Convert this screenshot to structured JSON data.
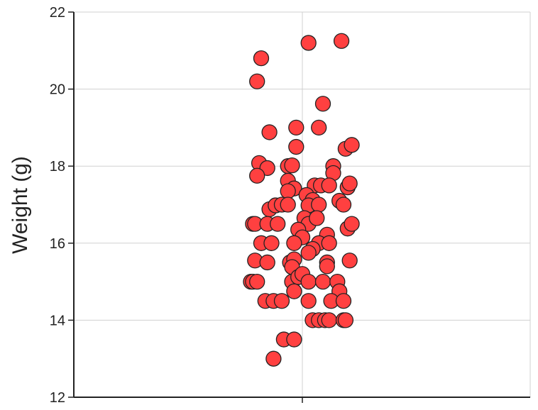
{
  "chart_data": {
    "type": "scatter",
    "title": "",
    "xlabel": "",
    "ylabel": "Weight (g)",
    "ylim": [
      12,
      22
    ],
    "yticks": [
      "12",
      "14",
      "16",
      "18",
      "20",
      "22"
    ],
    "grid": true,
    "marker_color": "#ff4040",
    "marker_edge_color": "#222222",
    "points": [
      {
        "jitter": -0.2,
        "y": 20.8
      },
      {
        "jitter": -0.22,
        "y": 20.2
      },
      {
        "jitter": 0.03,
        "y": 21.2
      },
      {
        "jitter": 0.19,
        "y": 21.25
      },
      {
        "jitter": 0.1,
        "y": 19.62
      },
      {
        "jitter": -0.16,
        "y": 18.88
      },
      {
        "jitter": -0.03,
        "y": 19.0
      },
      {
        "jitter": 0.08,
        "y": 19.0
      },
      {
        "jitter": -0.03,
        "y": 18.5
      },
      {
        "jitter": 0.21,
        "y": 18.45
      },
      {
        "jitter": 0.24,
        "y": 18.55
      },
      {
        "jitter": -0.21,
        "y": 18.08
      },
      {
        "jitter": -0.17,
        "y": 17.95
      },
      {
        "jitter": -0.22,
        "y": 17.75
      },
      {
        "jitter": -0.07,
        "y": 18.0
      },
      {
        "jitter": -0.05,
        "y": 18.02
      },
      {
        "jitter": 0.15,
        "y": 18.0
      },
      {
        "jitter": 0.15,
        "y": 17.82
      },
      {
        "jitter": -0.07,
        "y": 17.62
      },
      {
        "jitter": -0.04,
        "y": 17.42
      },
      {
        "jitter": 0.06,
        "y": 17.5
      },
      {
        "jitter": 0.09,
        "y": 17.5
      },
      {
        "jitter": 0.13,
        "y": 17.5
      },
      {
        "jitter": 0.22,
        "y": 17.45
      },
      {
        "jitter": 0.23,
        "y": 17.55
      },
      {
        "jitter": -0.07,
        "y": 17.35
      },
      {
        "jitter": 0.02,
        "y": 17.25
      },
      {
        "jitter": 0.05,
        "y": 17.12
      },
      {
        "jitter": 0.18,
        "y": 17.1
      },
      {
        "jitter": -0.16,
        "y": 16.88
      },
      {
        "jitter": -0.13,
        "y": 16.98
      },
      {
        "jitter": -0.1,
        "y": 17.0
      },
      {
        "jitter": -0.07,
        "y": 17.0
      },
      {
        "jitter": 0.03,
        "y": 16.98
      },
      {
        "jitter": 0.08,
        "y": 17.0
      },
      {
        "jitter": 0.2,
        "y": 17.0
      },
      {
        "jitter": -0.24,
        "y": 16.5
      },
      {
        "jitter": -0.23,
        "y": 16.5
      },
      {
        "jitter": -0.17,
        "y": 16.5
      },
      {
        "jitter": -0.12,
        "y": 16.5
      },
      {
        "jitter": 0.01,
        "y": 16.65
      },
      {
        "jitter": 0.03,
        "y": 16.5
      },
      {
        "jitter": 0.07,
        "y": 16.65
      },
      {
        "jitter": 0.22,
        "y": 16.38
      },
      {
        "jitter": 0.24,
        "y": 16.5
      },
      {
        "jitter": -0.02,
        "y": 16.35
      },
      {
        "jitter": 0.0,
        "y": 16.15
      },
      {
        "jitter": 0.12,
        "y": 16.22
      },
      {
        "jitter": -0.2,
        "y": 16.0
      },
      {
        "jitter": -0.15,
        "y": 16.0
      },
      {
        "jitter": -0.04,
        "y": 16.0
      },
      {
        "jitter": 0.08,
        "y": 16.0
      },
      {
        "jitter": 0.13,
        "y": 16.0
      },
      {
        "jitter": 0.05,
        "y": 15.85
      },
      {
        "jitter": 0.03,
        "y": 15.75
      },
      {
        "jitter": -0.23,
        "y": 15.55
      },
      {
        "jitter": -0.17,
        "y": 15.5
      },
      {
        "jitter": -0.06,
        "y": 15.5
      },
      {
        "jitter": -0.04,
        "y": 15.58
      },
      {
        "jitter": -0.05,
        "y": 15.38
      },
      {
        "jitter": 0.12,
        "y": 15.5
      },
      {
        "jitter": 0.12,
        "y": 15.4
      },
      {
        "jitter": 0.23,
        "y": 15.55
      },
      {
        "jitter": -0.25,
        "y": 15.0
      },
      {
        "jitter": -0.24,
        "y": 15.0
      },
      {
        "jitter": -0.22,
        "y": 15.0
      },
      {
        "jitter": -0.05,
        "y": 15.0
      },
      {
        "jitter": -0.02,
        "y": 15.12
      },
      {
        "jitter": 0.0,
        "y": 15.2
      },
      {
        "jitter": 0.03,
        "y": 15.0
      },
      {
        "jitter": 0.1,
        "y": 15.0
      },
      {
        "jitter": 0.17,
        "y": 15.0
      },
      {
        "jitter": -0.04,
        "y": 14.75
      },
      {
        "jitter": 0.18,
        "y": 14.75
      },
      {
        "jitter": -0.18,
        "y": 14.5
      },
      {
        "jitter": -0.14,
        "y": 14.5
      },
      {
        "jitter": -0.1,
        "y": 14.5
      },
      {
        "jitter": 0.03,
        "y": 14.5
      },
      {
        "jitter": 0.14,
        "y": 14.5
      },
      {
        "jitter": 0.2,
        "y": 14.5
      },
      {
        "jitter": 0.05,
        "y": 14.0
      },
      {
        "jitter": 0.08,
        "y": 14.0
      },
      {
        "jitter": 0.11,
        "y": 14.0
      },
      {
        "jitter": 0.13,
        "y": 14.0
      },
      {
        "jitter": 0.2,
        "y": 14.0
      },
      {
        "jitter": 0.21,
        "y": 14.0
      },
      {
        "jitter": -0.09,
        "y": 13.5
      },
      {
        "jitter": -0.04,
        "y": 13.5
      },
      {
        "jitter": -0.14,
        "y": 13.0
      }
    ]
  }
}
